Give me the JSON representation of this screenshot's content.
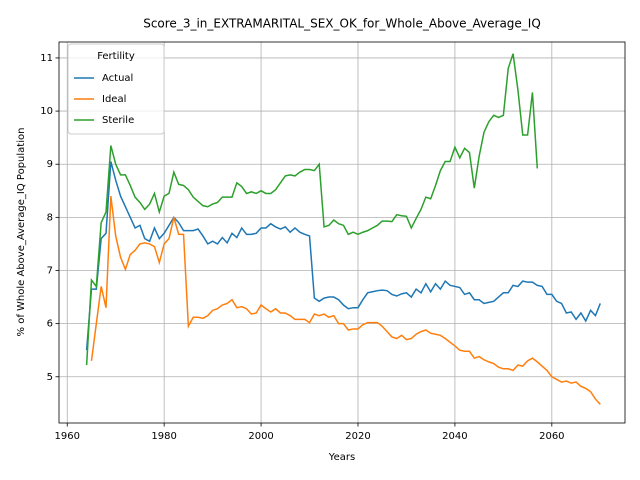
{
  "chart_data": {
    "type": "line",
    "title": "Score_3_in_EXTRAMARITAL_SEX_OK_for_Whole_Above_Average_IQ",
    "xlabel": "Years",
    "ylabel": "% of Whole Above_Average_IQ Population",
    "legend_title": "Fertility",
    "legend": "upper left",
    "grid": true,
    "xlim": [
      1958.3,
      2075.1
    ],
    "ylim": [
      4.13,
      11.3
    ],
    "xticks": [
      1960,
      1980,
      2000,
      2020,
      2040,
      2060
    ],
    "yticks": [
      5,
      6,
      7,
      8,
      9,
      10,
      11
    ],
    "x": [
      1964,
      1965,
      1966,
      1967,
      1968,
      1969,
      1970,
      1971,
      1972,
      1973,
      1974,
      1975,
      1976,
      1977,
      1978,
      1979,
      1980,
      1981,
      1982,
      1983,
      1984,
      1985,
      1986,
      1987,
      1988,
      1989,
      1990,
      1991,
      1992,
      1993,
      1994,
      1995,
      1996,
      1997,
      1998,
      1999,
      2000,
      2001,
      2002,
      2003,
      2004,
      2005,
      2006,
      2007,
      2008,
      2009,
      2010,
      2011,
      2012,
      2013,
      2014,
      2015,
      2016,
      2017,
      2018,
      2019,
      2020,
      2021,
      2022,
      2023,
      2024,
      2025,
      2026,
      2027,
      2028,
      2029,
      2030,
      2031,
      2032,
      2033,
      2034,
      2035,
      2036,
      2037,
      2038,
      2039,
      2040,
      2041,
      2042,
      2043,
      2044,
      2045,
      2046,
      2047,
      2048,
      2049,
      2050,
      2051,
      2052,
      2053,
      2054,
      2055,
      2056,
      2057,
      2058,
      2059,
      2060,
      2061,
      2062,
      2063,
      2064,
      2065,
      2066,
      2067,
      2068,
      2069,
      2070
    ],
    "series": [
      {
        "name": "Actual",
        "color": "#1f77b4",
        "values": [
          5.5,
          6.65,
          6.65,
          7.6,
          7.7,
          9.05,
          8.7,
          8.4,
          8.2,
          8.0,
          7.8,
          7.85,
          7.6,
          7.55,
          7.8,
          7.6,
          7.7,
          7.85,
          8.0,
          7.9,
          7.75,
          7.75,
          7.75,
          7.78,
          7.65,
          7.5,
          7.55,
          7.5,
          7.62,
          7.52,
          7.7,
          7.62,
          7.8,
          7.68,
          7.68,
          7.7,
          7.8,
          7.8,
          7.88,
          7.82,
          7.78,
          7.82,
          7.72,
          7.8,
          7.72,
          7.68,
          7.65,
          6.48,
          6.42,
          6.48,
          6.5,
          6.5,
          6.45,
          6.35,
          6.28,
          6.3,
          6.3,
          6.45,
          6.58,
          6.6,
          6.62,
          6.63,
          6.62,
          6.55,
          6.52,
          6.56,
          6.58,
          6.5,
          6.65,
          6.58,
          6.75,
          6.6,
          6.75,
          6.65,
          6.8,
          6.72,
          6.7,
          6.68,
          6.55,
          6.58,
          6.45,
          6.45,
          6.38,
          6.4,
          6.42,
          6.5,
          6.58,
          6.58,
          6.72,
          6.7,
          6.8,
          6.78,
          6.78,
          6.72,
          6.7,
          6.55,
          6.55,
          6.42,
          6.38,
          6.2,
          6.22,
          6.08,
          6.2,
          6.05,
          6.25,
          6.15,
          6.38
        ]
      },
      {
        "name": "Ideal",
        "color": "#ff7f0e",
        "values": [
          null,
          5.3,
          6.0,
          6.7,
          6.3,
          8.4,
          7.65,
          7.25,
          7.02,
          7.3,
          7.38,
          7.5,
          7.52,
          7.5,
          7.45,
          7.15,
          7.5,
          7.6,
          8.0,
          7.68,
          7.68,
          5.95,
          6.12,
          6.12,
          6.1,
          6.15,
          6.25,
          6.28,
          6.35,
          6.38,
          6.45,
          6.3,
          6.32,
          6.28,
          6.18,
          6.2,
          6.35,
          6.28,
          6.22,
          6.28,
          6.2,
          6.2,
          6.15,
          6.08,
          6.08,
          6.08,
          6.02,
          6.18,
          6.15,
          6.18,
          6.12,
          6.15,
          6.0,
          6.0,
          5.88,
          5.9,
          5.9,
          5.98,
          6.02,
          6.02,
          6.02,
          5.95,
          5.85,
          5.75,
          5.72,
          5.78,
          5.7,
          5.72,
          5.8,
          5.85,
          5.88,
          5.82,
          5.8,
          5.78,
          5.72,
          5.65,
          5.58,
          5.5,
          5.48,
          5.48,
          5.35,
          5.38,
          5.32,
          5.28,
          5.25,
          5.18,
          5.15,
          5.15,
          5.12,
          5.22,
          5.2,
          5.3,
          5.35,
          5.28,
          5.2,
          5.12,
          5.0,
          4.95,
          4.9,
          4.92,
          4.88,
          4.9,
          4.82,
          4.78,
          4.72,
          4.58,
          4.48
        ]
      },
      {
        "name": "Sterile",
        "color": "#2ca02c",
        "values": [
          5.22,
          6.82,
          6.7,
          7.9,
          8.1,
          9.35,
          9.0,
          8.8,
          8.8,
          8.6,
          8.38,
          8.28,
          8.15,
          8.25,
          8.45,
          8.1,
          8.4,
          8.45,
          8.85,
          8.62,
          8.6,
          8.52,
          8.38,
          8.3,
          8.22,
          8.2,
          8.25,
          8.28,
          8.38,
          8.38,
          8.38,
          8.65,
          8.58,
          8.45,
          8.48,
          8.45,
          8.5,
          8.45,
          8.45,
          8.52,
          8.65,
          8.78,
          8.8,
          8.78,
          8.85,
          8.9,
          8.9,
          8.88,
          9.0,
          7.82,
          7.85,
          7.95,
          7.88,
          7.85,
          7.68,
          7.72,
          7.68,
          7.72,
          7.75,
          7.8,
          7.85,
          7.93,
          7.93,
          7.92,
          8.05,
          8.03,
          8.02,
          7.8,
          7.98,
          8.15,
          8.38,
          8.35,
          8.6,
          8.88,
          9.05,
          9.05,
          9.32,
          9.12,
          9.3,
          9.22,
          8.55,
          9.15,
          9.6,
          9.8,
          9.92,
          9.88,
          9.92,
          10.8,
          11.08,
          10.4,
          9.55,
          9.55,
          10.35,
          8.92,
          null,
          null,
          null,
          null,
          null,
          null,
          null,
          null,
          null,
          null,
          null,
          null,
          null
        ]
      }
    ]
  }
}
